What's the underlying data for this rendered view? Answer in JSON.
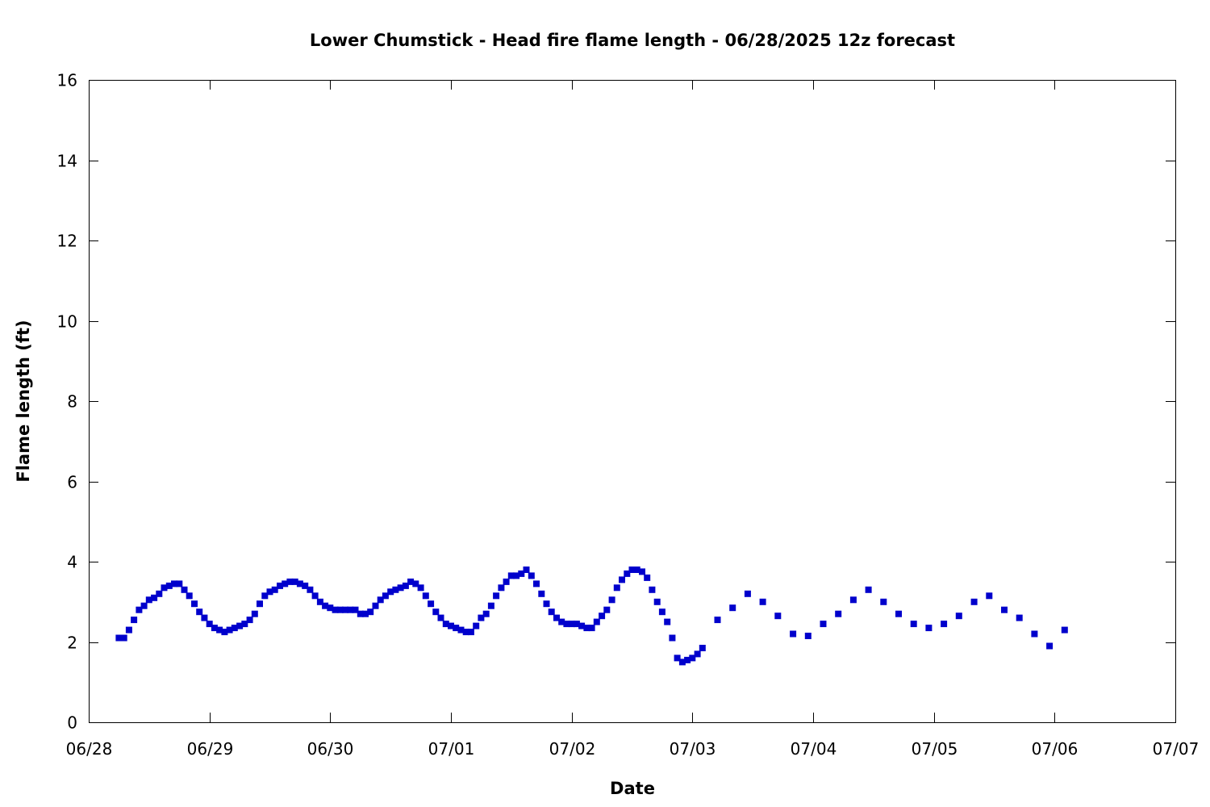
{
  "chart_data": {
    "type": "scatter",
    "title": "Lower Chumstick - Head fire flame length - 06/28/2025 12z forecast",
    "xlabel": "Date",
    "ylabel": "Flame length (ft)",
    "xlim": [
      "2025-06-28 00:00",
      "2025-07-07 00:00"
    ],
    "ylim": [
      0,
      16
    ],
    "x_tick_labels": [
      "06/28",
      "06/29",
      "06/30",
      "07/01",
      "07/02",
      "07/03",
      "07/04",
      "07/05",
      "07/06",
      "07/07"
    ],
    "y_ticks": [
      0,
      2,
      4,
      6,
      8,
      10,
      12,
      14,
      16
    ],
    "grid": false,
    "legend": "none",
    "marker": "square",
    "color": "#0000cc",
    "series": [
      {
        "points": [
          [
            "2025-06-28 06:00",
            2.1
          ],
          [
            "2025-06-28 07:00",
            2.1
          ],
          [
            "2025-06-28 08:00",
            2.3
          ],
          [
            "2025-06-28 09:00",
            2.55
          ],
          [
            "2025-06-28 10:00",
            2.8
          ],
          [
            "2025-06-28 11:00",
            2.9
          ],
          [
            "2025-06-28 12:00",
            3.05
          ],
          [
            "2025-06-28 13:00",
            3.1
          ],
          [
            "2025-06-28 14:00",
            3.2
          ],
          [
            "2025-06-28 15:00",
            3.35
          ],
          [
            "2025-06-28 16:00",
            3.4
          ],
          [
            "2025-06-28 17:00",
            3.45
          ],
          [
            "2025-06-28 18:00",
            3.45
          ],
          [
            "2025-06-28 19:00",
            3.3
          ],
          [
            "2025-06-28 20:00",
            3.15
          ],
          [
            "2025-06-28 21:00",
            2.95
          ],
          [
            "2025-06-28 22:00",
            2.75
          ],
          [
            "2025-06-28 23:00",
            2.6
          ],
          [
            "2025-06-29 00:00",
            2.45
          ],
          [
            "2025-06-29 01:00",
            2.35
          ],
          [
            "2025-06-29 02:00",
            2.3
          ],
          [
            "2025-06-29 03:00",
            2.25
          ],
          [
            "2025-06-29 04:00",
            2.3
          ],
          [
            "2025-06-29 05:00",
            2.35
          ],
          [
            "2025-06-29 06:00",
            2.4
          ],
          [
            "2025-06-29 07:00",
            2.45
          ],
          [
            "2025-06-29 08:00",
            2.55
          ],
          [
            "2025-06-29 09:00",
            2.7
          ],
          [
            "2025-06-29 10:00",
            2.95
          ],
          [
            "2025-06-29 11:00",
            3.15
          ],
          [
            "2025-06-29 12:00",
            3.25
          ],
          [
            "2025-06-29 13:00",
            3.3
          ],
          [
            "2025-06-29 14:00",
            3.4
          ],
          [
            "2025-06-29 15:00",
            3.45
          ],
          [
            "2025-06-29 16:00",
            3.5
          ],
          [
            "2025-06-29 17:00",
            3.5
          ],
          [
            "2025-06-29 18:00",
            3.45
          ],
          [
            "2025-06-29 19:00",
            3.4
          ],
          [
            "2025-06-29 20:00",
            3.3
          ],
          [
            "2025-06-29 21:00",
            3.15
          ],
          [
            "2025-06-29 22:00",
            3.0
          ],
          [
            "2025-06-29 23:00",
            2.9
          ],
          [
            "2025-06-30 00:00",
            2.85
          ],
          [
            "2025-06-30 01:00",
            2.8
          ],
          [
            "2025-06-30 02:00",
            2.8
          ],
          [
            "2025-06-30 03:00",
            2.8
          ],
          [
            "2025-06-30 04:00",
            2.8
          ],
          [
            "2025-06-30 05:00",
            2.8
          ],
          [
            "2025-06-30 06:00",
            2.7
          ],
          [
            "2025-06-30 07:00",
            2.7
          ],
          [
            "2025-06-30 08:00",
            2.75
          ],
          [
            "2025-06-30 09:00",
            2.9
          ],
          [
            "2025-06-30 10:00",
            3.05
          ],
          [
            "2025-06-30 11:00",
            3.15
          ],
          [
            "2025-06-30 12:00",
            3.25
          ],
          [
            "2025-06-30 13:00",
            3.3
          ],
          [
            "2025-06-30 14:00",
            3.35
          ],
          [
            "2025-06-30 15:00",
            3.4
          ],
          [
            "2025-06-30 16:00",
            3.5
          ],
          [
            "2025-06-30 17:00",
            3.45
          ],
          [
            "2025-06-30 18:00",
            3.35
          ],
          [
            "2025-06-30 19:00",
            3.15
          ],
          [
            "2025-06-30 20:00",
            2.95
          ],
          [
            "2025-06-30 21:00",
            2.75
          ],
          [
            "2025-06-30 22:00",
            2.6
          ],
          [
            "2025-06-30 23:00",
            2.45
          ],
          [
            "2025-07-01 00:00",
            2.4
          ],
          [
            "2025-07-01 01:00",
            2.35
          ],
          [
            "2025-07-01 02:00",
            2.3
          ],
          [
            "2025-07-01 03:00",
            2.25
          ],
          [
            "2025-07-01 04:00",
            2.25
          ],
          [
            "2025-07-01 05:00",
            2.4
          ],
          [
            "2025-07-01 06:00",
            2.6
          ],
          [
            "2025-07-01 07:00",
            2.7
          ],
          [
            "2025-07-01 08:00",
            2.9
          ],
          [
            "2025-07-01 09:00",
            3.15
          ],
          [
            "2025-07-01 10:00",
            3.35
          ],
          [
            "2025-07-01 11:00",
            3.5
          ],
          [
            "2025-07-01 12:00",
            3.65
          ],
          [
            "2025-07-01 13:00",
            3.65
          ],
          [
            "2025-07-01 14:00",
            3.7
          ],
          [
            "2025-07-01 15:00",
            3.8
          ],
          [
            "2025-07-01 16:00",
            3.65
          ],
          [
            "2025-07-01 17:00",
            3.45
          ],
          [
            "2025-07-01 18:00",
            3.2
          ],
          [
            "2025-07-01 19:00",
            2.95
          ],
          [
            "2025-07-01 20:00",
            2.75
          ],
          [
            "2025-07-01 21:00",
            2.6
          ],
          [
            "2025-07-01 22:00",
            2.5
          ],
          [
            "2025-07-01 23:00",
            2.45
          ],
          [
            "2025-07-02 00:00",
            2.45
          ],
          [
            "2025-07-02 01:00",
            2.45
          ],
          [
            "2025-07-02 02:00",
            2.4
          ],
          [
            "2025-07-02 03:00",
            2.35
          ],
          [
            "2025-07-02 04:00",
            2.35
          ],
          [
            "2025-07-02 05:00",
            2.5
          ],
          [
            "2025-07-02 06:00",
            2.65
          ],
          [
            "2025-07-02 07:00",
            2.8
          ],
          [
            "2025-07-02 08:00",
            3.05
          ],
          [
            "2025-07-02 09:00",
            3.35
          ],
          [
            "2025-07-02 10:00",
            3.55
          ],
          [
            "2025-07-02 11:00",
            3.7
          ],
          [
            "2025-07-02 12:00",
            3.8
          ],
          [
            "2025-07-02 13:00",
            3.8
          ],
          [
            "2025-07-02 14:00",
            3.75
          ],
          [
            "2025-07-02 15:00",
            3.6
          ],
          [
            "2025-07-02 16:00",
            3.3
          ],
          [
            "2025-07-02 17:00",
            3.0
          ],
          [
            "2025-07-02 18:00",
            2.75
          ],
          [
            "2025-07-02 19:00",
            2.5
          ],
          [
            "2025-07-02 20:00",
            2.1
          ],
          [
            "2025-07-02 21:00",
            1.6
          ],
          [
            "2025-07-02 22:00",
            1.5
          ],
          [
            "2025-07-02 23:00",
            1.55
          ],
          [
            "2025-07-03 00:00",
            1.6
          ],
          [
            "2025-07-03 01:00",
            1.7
          ],
          [
            "2025-07-03 02:00",
            1.85
          ],
          [
            "2025-07-03 05:00",
            2.55
          ],
          [
            "2025-07-03 08:00",
            2.85
          ],
          [
            "2025-07-03 11:00",
            3.2
          ],
          [
            "2025-07-03 14:00",
            3.0
          ],
          [
            "2025-07-03 17:00",
            2.65
          ],
          [
            "2025-07-03 20:00",
            2.2
          ],
          [
            "2025-07-03 23:00",
            2.15
          ],
          [
            "2025-07-04 02:00",
            2.45
          ],
          [
            "2025-07-04 05:00",
            2.7
          ],
          [
            "2025-07-04 08:00",
            3.05
          ],
          [
            "2025-07-04 11:00",
            3.3
          ],
          [
            "2025-07-04 14:00",
            3.0
          ],
          [
            "2025-07-04 17:00",
            2.7
          ],
          [
            "2025-07-04 20:00",
            2.45
          ],
          [
            "2025-07-04 23:00",
            2.35
          ],
          [
            "2025-07-05 02:00",
            2.45
          ],
          [
            "2025-07-05 05:00",
            2.65
          ],
          [
            "2025-07-05 08:00",
            3.0
          ],
          [
            "2025-07-05 11:00",
            3.15
          ],
          [
            "2025-07-05 14:00",
            2.8
          ],
          [
            "2025-07-05 17:00",
            2.6
          ],
          [
            "2025-07-05 20:00",
            2.2
          ],
          [
            "2025-07-05 23:00",
            1.9
          ],
          [
            "2025-07-06 02:00",
            2.3
          ]
        ]
      }
    ]
  }
}
